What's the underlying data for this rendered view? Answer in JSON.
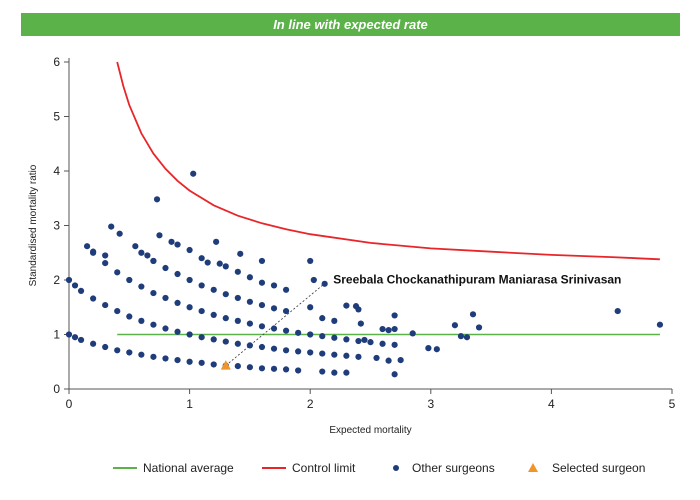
{
  "banner": {
    "text": "In line with expected rate"
  },
  "chart_data": {
    "type": "scatter",
    "xlabel": "Expected mortality",
    "ylabel": "Standardised mortality ratio",
    "xlim": [
      0,
      5
    ],
    "ylim": [
      0,
      6
    ],
    "xticks": [
      "0",
      "1",
      "2",
      "3",
      "4",
      "5"
    ],
    "yticks": [
      "0",
      "1",
      "2",
      "3",
      "4",
      "5",
      "6"
    ],
    "grid": false,
    "legend_position": "bottom",
    "annotation": {
      "text": "Sreebala Chockanathipuram Maniarasa Srinivasan",
      "x": 2.1,
      "y": 1.9
    },
    "series": [
      {
        "name": "National average",
        "kind": "line",
        "color": "#5bb249",
        "points": [
          [
            0.4,
            1
          ],
          [
            4.9,
            1
          ]
        ]
      },
      {
        "name": "Control limit",
        "kind": "curve",
        "color": "#e8262a",
        "points": [
          [
            0.4,
            6.0
          ],
          [
            0.45,
            5.56
          ],
          [
            0.5,
            5.21
          ],
          [
            0.6,
            4.69
          ],
          [
            0.7,
            4.32
          ],
          [
            0.8,
            4.04
          ],
          [
            0.9,
            3.82
          ],
          [
            1.0,
            3.64
          ],
          [
            1.2,
            3.37
          ],
          [
            1.4,
            3.18
          ],
          [
            1.6,
            3.04
          ],
          [
            1.8,
            2.93
          ],
          [
            2.0,
            2.84
          ],
          [
            2.5,
            2.68
          ],
          [
            3.0,
            2.58
          ],
          [
            3.5,
            2.52
          ],
          [
            4.0,
            2.46
          ],
          [
            4.5,
            2.42
          ],
          [
            4.9,
            2.38
          ]
        ]
      },
      {
        "name": "Other surgeons",
        "kind": "scatter",
        "color": "#1f3d7a",
        "points": [
          [
            0.0,
            1.0
          ],
          [
            0.05,
            0.95
          ],
          [
            0.1,
            0.9
          ],
          [
            0.2,
            0.83
          ],
          [
            0.3,
            0.77
          ],
          [
            0.4,
            0.71
          ],
          [
            0.5,
            0.67
          ],
          [
            0.6,
            0.63
          ],
          [
            0.7,
            0.59
          ],
          [
            0.8,
            0.56
          ],
          [
            0.9,
            0.53
          ],
          [
            1.0,
            0.5
          ],
          [
            1.1,
            0.48
          ],
          [
            1.2,
            0.45
          ],
          [
            1.3,
            0.43
          ],
          [
            1.4,
            0.42
          ],
          [
            1.5,
            0.4
          ],
          [
            1.6,
            0.38
          ],
          [
            1.7,
            0.37
          ],
          [
            1.8,
            0.36
          ],
          [
            1.9,
            0.34
          ],
          [
            0.0,
            2.0
          ],
          [
            0.05,
            1.9
          ],
          [
            0.1,
            1.8
          ],
          [
            0.2,
            1.66
          ],
          [
            0.3,
            1.54
          ],
          [
            0.4,
            1.43
          ],
          [
            0.5,
            1.33
          ],
          [
            0.6,
            1.25
          ],
          [
            0.7,
            1.18
          ],
          [
            0.8,
            1.11
          ],
          [
            0.9,
            1.05
          ],
          [
            1.0,
            1.0
          ],
          [
            1.1,
            0.95
          ],
          [
            1.2,
            0.91
          ],
          [
            1.3,
            0.87
          ],
          [
            1.4,
            0.83
          ],
          [
            1.5,
            0.8
          ],
          [
            1.6,
            0.77
          ],
          [
            1.7,
            0.74
          ],
          [
            1.8,
            0.71
          ],
          [
            1.9,
            0.69
          ],
          [
            2.0,
            0.67
          ],
          [
            2.1,
            0.65
          ],
          [
            2.2,
            0.63
          ],
          [
            2.3,
            0.61
          ],
          [
            2.4,
            0.59
          ],
          [
            0.2,
            2.5
          ],
          [
            0.3,
            2.31
          ],
          [
            0.4,
            2.14
          ],
          [
            0.5,
            2.0
          ],
          [
            0.6,
            1.88
          ],
          [
            0.7,
            1.76
          ],
          [
            0.8,
            1.67
          ],
          [
            0.9,
            1.58
          ],
          [
            1.0,
            1.5
          ],
          [
            1.1,
            1.43
          ],
          [
            1.2,
            1.36
          ],
          [
            1.3,
            1.3
          ],
          [
            1.4,
            1.25
          ],
          [
            1.5,
            1.2
          ],
          [
            1.6,
            1.15
          ],
          [
            1.7,
            1.11
          ],
          [
            1.8,
            1.07
          ],
          [
            1.9,
            1.03
          ],
          [
            2.0,
            1.0
          ],
          [
            2.1,
            0.97
          ],
          [
            2.2,
            0.94
          ],
          [
            2.3,
            0.91
          ],
          [
            2.4,
            0.88
          ],
          [
            2.5,
            0.86
          ],
          [
            2.6,
            0.83
          ],
          [
            2.7,
            0.81
          ],
          [
            0.6,
            2.5
          ],
          [
            0.7,
            2.35
          ],
          [
            0.8,
            2.22
          ],
          [
            0.9,
            2.11
          ],
          [
            1.0,
            2.0
          ],
          [
            1.1,
            1.9
          ],
          [
            1.2,
            1.82
          ],
          [
            1.3,
            1.74
          ],
          [
            1.4,
            1.67
          ],
          [
            1.5,
            1.6
          ],
          [
            1.6,
            1.54
          ],
          [
            1.7,
            1.48
          ],
          [
            1.8,
            1.43
          ],
          [
            0.35,
            2.98
          ],
          [
            0.42,
            2.85
          ],
          [
            0.15,
            2.62
          ],
          [
            0.2,
            2.52
          ],
          [
            0.3,
            2.45
          ],
          [
            0.55,
            2.62
          ],
          [
            0.65,
            2.45
          ],
          [
            0.7,
            2.35
          ],
          [
            0.75,
            2.82
          ],
          [
            0.85,
            2.7
          ],
          [
            0.9,
            2.65
          ],
          [
            1.0,
            2.55
          ],
          [
            1.1,
            2.4
          ],
          [
            1.15,
            2.32
          ],
          [
            1.25,
            2.3
          ],
          [
            1.3,
            2.25
          ],
          [
            1.4,
            2.15
          ],
          [
            1.5,
            2.05
          ],
          [
            1.6,
            1.95
          ],
          [
            1.7,
            1.9
          ],
          [
            1.8,
            1.82
          ],
          [
            0.73,
            3.48
          ],
          [
            1.03,
            3.95
          ],
          [
            1.22,
            2.7
          ],
          [
            1.42,
            2.48
          ],
          [
            1.6,
            2.35
          ],
          [
            2.0,
            2.35
          ],
          [
            2.03,
            2.0
          ],
          [
            2.12,
            1.93
          ],
          [
            2.0,
            1.5
          ],
          [
            2.1,
            1.3
          ],
          [
            2.2,
            1.25
          ],
          [
            2.3,
            1.53
          ],
          [
            2.38,
            1.52
          ],
          [
            2.42,
            1.2
          ],
          [
            2.4,
            1.46
          ],
          [
            2.6,
            1.1
          ],
          [
            2.65,
            1.08
          ],
          [
            2.7,
            1.35
          ],
          [
            2.7,
            1.1
          ],
          [
            2.85,
            1.02
          ],
          [
            2.45,
            0.9
          ],
          [
            2.55,
            0.57
          ],
          [
            2.65,
            0.52
          ],
          [
            2.75,
            0.53
          ],
          [
            2.7,
            0.27
          ],
          [
            2.3,
            0.3
          ],
          [
            2.1,
            0.32
          ],
          [
            2.2,
            0.3
          ],
          [
            2.98,
            0.75
          ],
          [
            3.05,
            0.73
          ],
          [
            3.2,
            1.17
          ],
          [
            3.25,
            0.97
          ],
          [
            3.3,
            0.95
          ],
          [
            3.35,
            1.37
          ],
          [
            3.4,
            1.13
          ],
          [
            4.55,
            1.43
          ],
          [
            4.9,
            1.18
          ]
        ]
      },
      {
        "name": "Selected surgeon",
        "kind": "marker",
        "color": "#f0952b",
        "points": [
          [
            1.3,
            0.43
          ]
        ]
      }
    ]
  }
}
